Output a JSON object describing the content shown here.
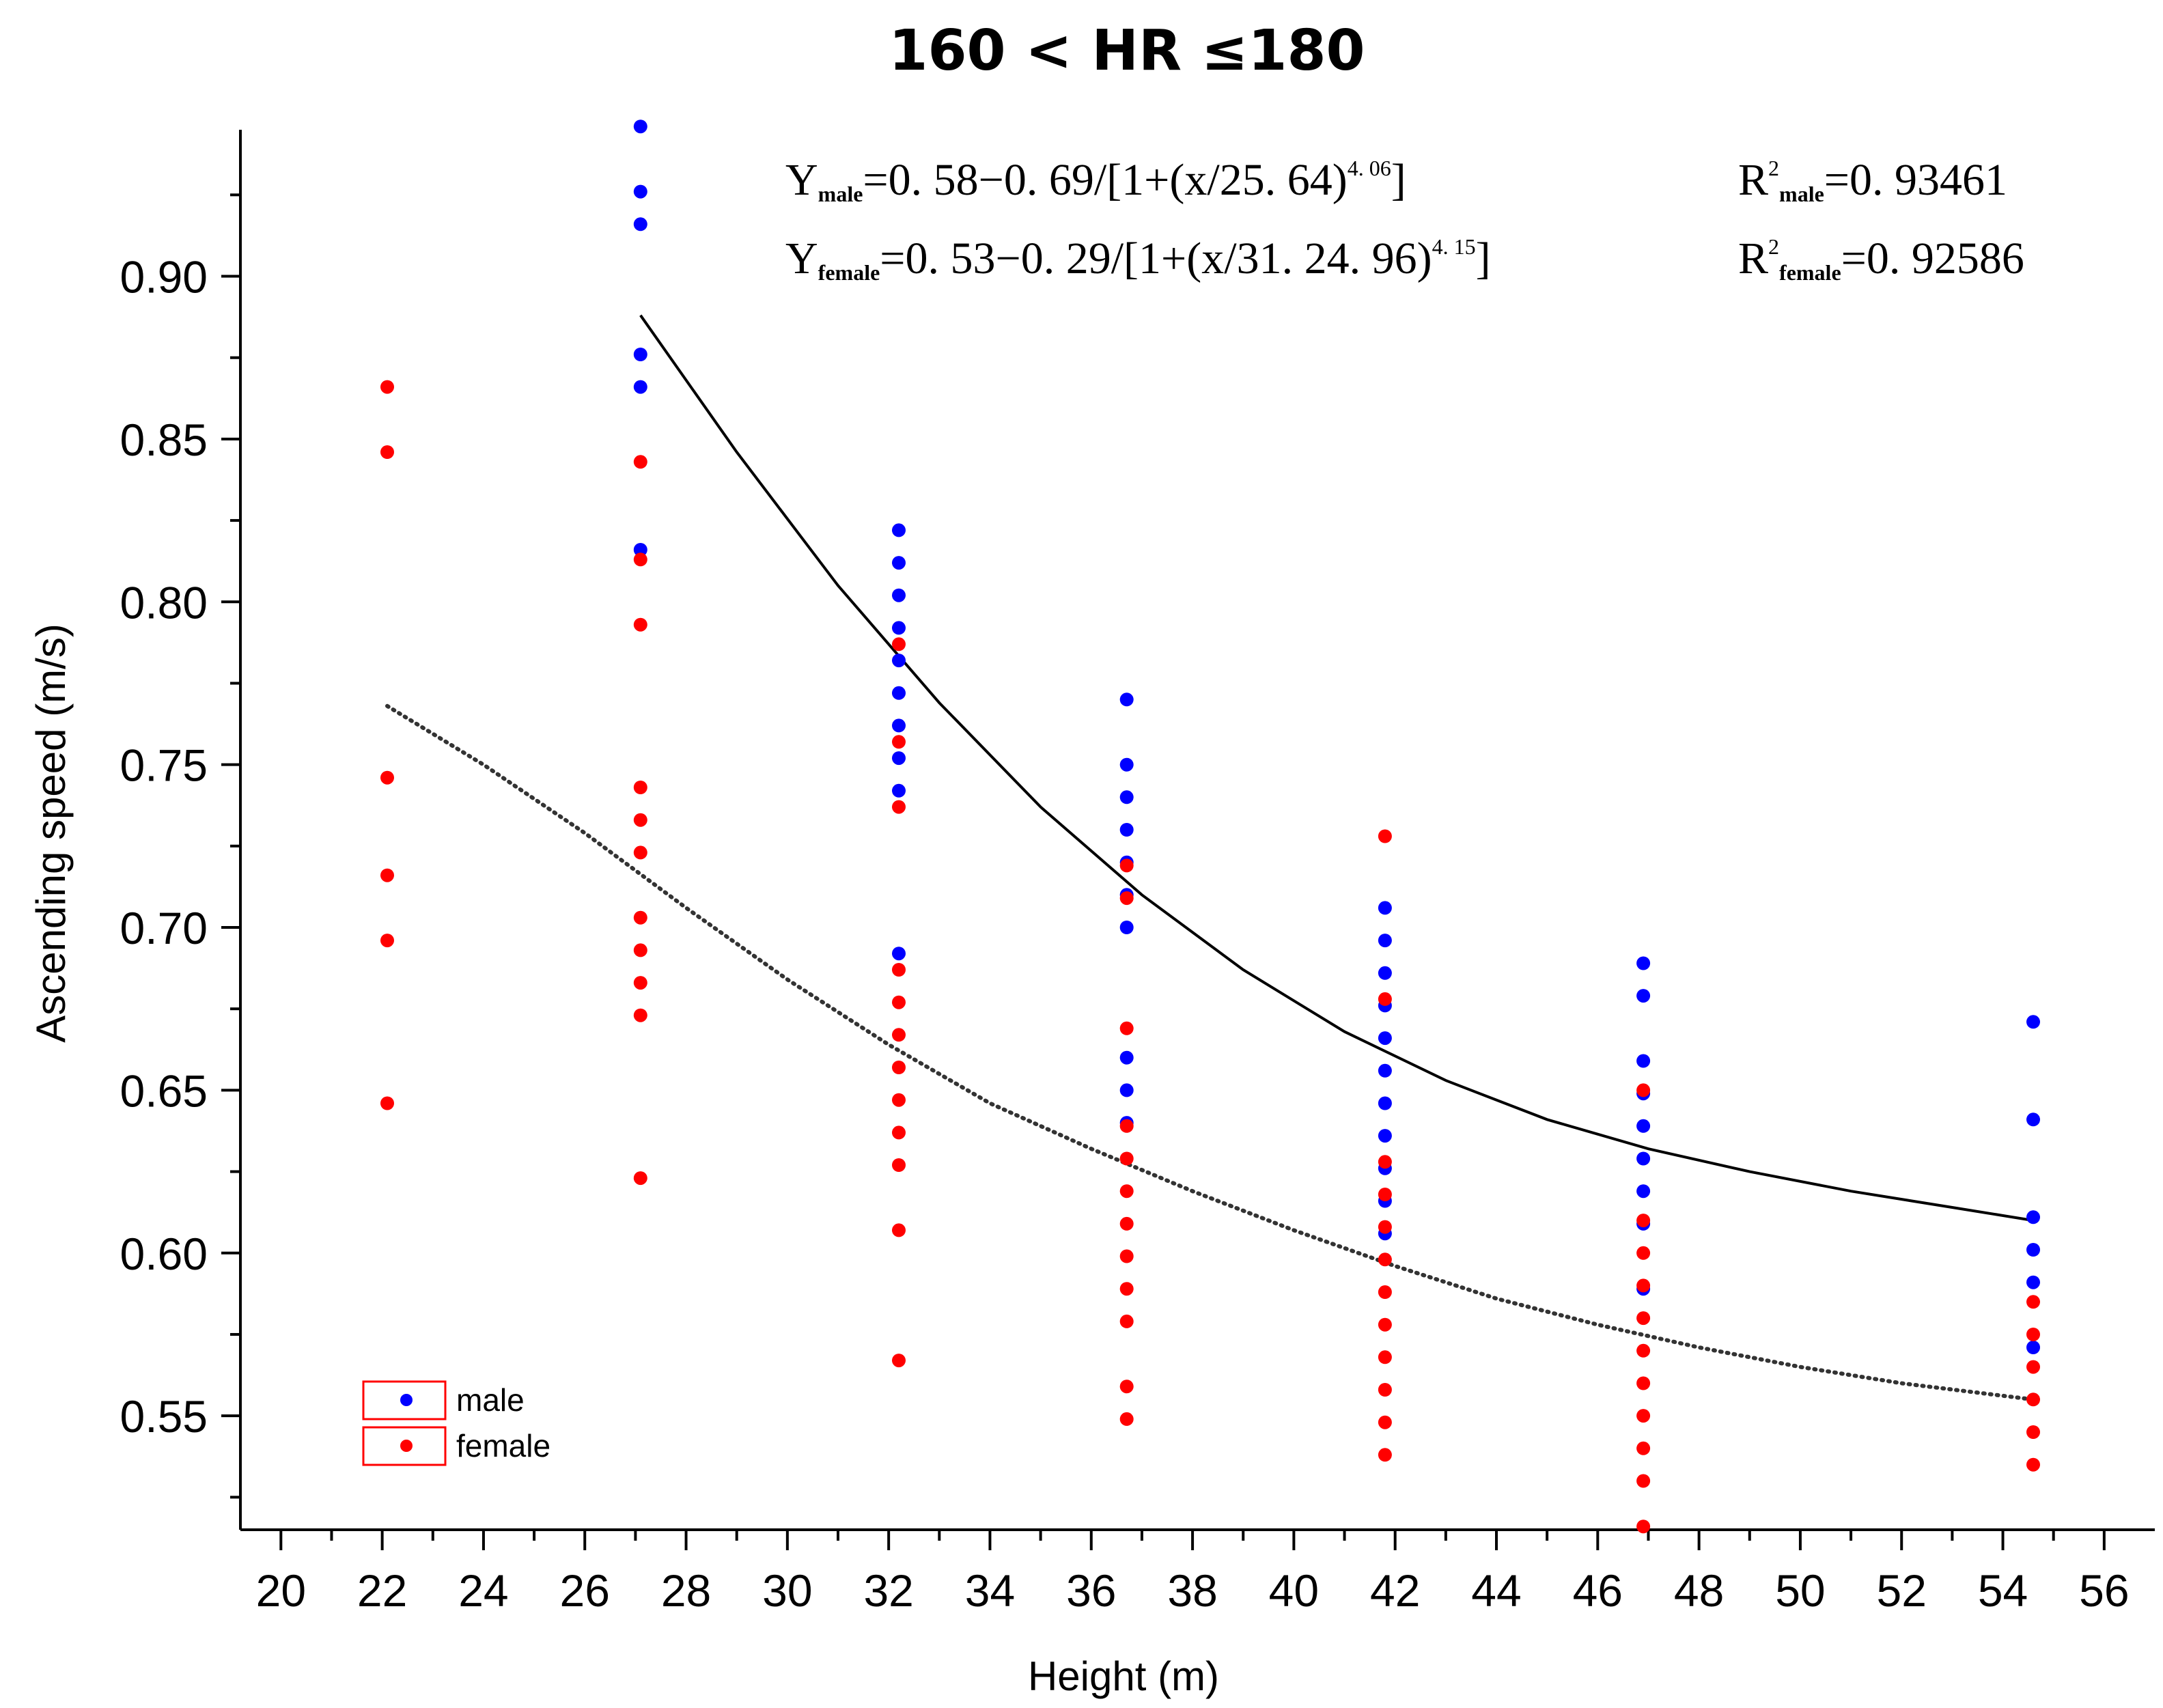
{
  "chart_data": {
    "type": "scatter",
    "title": "160 < HR  ≤180",
    "xlabel": "Height (m)",
    "ylabel": "Ascending speed (m/s)",
    "xlim": [
      19.2,
      57.0
    ],
    "ylim": [
      0.515,
      0.945
    ],
    "x_ticks": [
      20,
      22,
      24,
      26,
      28,
      30,
      32,
      34,
      36,
      38,
      40,
      42,
      44,
      46,
      48,
      50,
      52,
      54,
      56
    ],
    "x_tick_labels": [
      "20",
      "22",
      "24",
      "26",
      "28",
      "30",
      "32",
      "34",
      "36",
      "38",
      "40",
      "42",
      "44",
      "46",
      "48",
      "50",
      "52",
      "54",
      "56"
    ],
    "y_ticks": [
      0.55,
      0.6,
      0.65,
      0.7,
      0.75,
      0.8,
      0.85,
      0.9
    ],
    "y_tick_labels": [
      "0.55",
      "0.60",
      "0.65",
      "0.70",
      "0.75",
      "0.80",
      "0.85",
      "0.90"
    ],
    "series": [
      {
        "name": "male",
        "color": "#0000ff",
        "points": [
          [
            27.1,
            0.946
          ],
          [
            27.1,
            0.926
          ],
          [
            27.1,
            0.916
          ],
          [
            27.1,
            0.876
          ],
          [
            27.1,
            0.866
          ],
          [
            27.1,
            0.816
          ],
          [
            32.2,
            0.822
          ],
          [
            32.2,
            0.812
          ],
          [
            32.2,
            0.802
          ],
          [
            32.2,
            0.792
          ],
          [
            32.2,
            0.782
          ],
          [
            32.2,
            0.772
          ],
          [
            32.2,
            0.762
          ],
          [
            32.2,
            0.752
          ],
          [
            32.2,
            0.742
          ],
          [
            32.2,
            0.692
          ],
          [
            36.7,
            0.77
          ],
          [
            36.7,
            0.75
          ],
          [
            36.7,
            0.74
          ],
          [
            36.7,
            0.73
          ],
          [
            36.7,
            0.72
          ],
          [
            36.7,
            0.71
          ],
          [
            36.7,
            0.7
          ],
          [
            36.7,
            0.66
          ],
          [
            36.7,
            0.65
          ],
          [
            36.7,
            0.64
          ],
          [
            41.8,
            0.706
          ],
          [
            41.8,
            0.696
          ],
          [
            41.8,
            0.686
          ],
          [
            41.8,
            0.676
          ],
          [
            41.8,
            0.666
          ],
          [
            41.8,
            0.656
          ],
          [
            41.8,
            0.646
          ],
          [
            41.8,
            0.636
          ],
          [
            41.8,
            0.626
          ],
          [
            41.8,
            0.616
          ],
          [
            41.8,
            0.606
          ],
          [
            46.9,
            0.689
          ],
          [
            46.9,
            0.679
          ],
          [
            46.9,
            0.659
          ],
          [
            46.9,
            0.649
          ],
          [
            46.9,
            0.639
          ],
          [
            46.9,
            0.629
          ],
          [
            46.9,
            0.619
          ],
          [
            46.9,
            0.609
          ],
          [
            46.9,
            0.589
          ],
          [
            54.6,
            0.671
          ],
          [
            54.6,
            0.641
          ],
          [
            54.6,
            0.611
          ],
          [
            54.6,
            0.601
          ],
          [
            54.6,
            0.591
          ],
          [
            54.6,
            0.571
          ]
        ]
      },
      {
        "name": "female",
        "color": "#ff0000",
        "points": [
          [
            22.1,
            0.866
          ],
          [
            22.1,
            0.846
          ],
          [
            22.1,
            0.746
          ],
          [
            22.1,
            0.716
          ],
          [
            22.1,
            0.696
          ],
          [
            22.1,
            0.646
          ],
          [
            27.1,
            0.843
          ],
          [
            27.1,
            0.813
          ],
          [
            27.1,
            0.793
          ],
          [
            27.1,
            0.743
          ],
          [
            27.1,
            0.733
          ],
          [
            27.1,
            0.723
          ],
          [
            27.1,
            0.703
          ],
          [
            27.1,
            0.693
          ],
          [
            27.1,
            0.683
          ],
          [
            27.1,
            0.673
          ],
          [
            27.1,
            0.623
          ],
          [
            32.2,
            0.787
          ],
          [
            32.2,
            0.757
          ],
          [
            32.2,
            0.737
          ],
          [
            32.2,
            0.687
          ],
          [
            32.2,
            0.677
          ],
          [
            32.2,
            0.667
          ],
          [
            32.2,
            0.657
          ],
          [
            32.2,
            0.647
          ],
          [
            32.2,
            0.637
          ],
          [
            32.2,
            0.627
          ],
          [
            32.2,
            0.607
          ],
          [
            32.2,
            0.567
          ],
          [
            36.7,
            0.719
          ],
          [
            36.7,
            0.709
          ],
          [
            36.7,
            0.669
          ],
          [
            36.7,
            0.639
          ],
          [
            36.7,
            0.629
          ],
          [
            36.7,
            0.619
          ],
          [
            36.7,
            0.609
          ],
          [
            36.7,
            0.599
          ],
          [
            36.7,
            0.589
          ],
          [
            36.7,
            0.579
          ],
          [
            36.7,
            0.559
          ],
          [
            36.7,
            0.549
          ],
          [
            41.8,
            0.728
          ],
          [
            41.8,
            0.678
          ],
          [
            41.8,
            0.628
          ],
          [
            41.8,
            0.618
          ],
          [
            41.8,
            0.608
          ],
          [
            41.8,
            0.598
          ],
          [
            41.8,
            0.588
          ],
          [
            41.8,
            0.578
          ],
          [
            41.8,
            0.568
          ],
          [
            41.8,
            0.558
          ],
          [
            41.8,
            0.548
          ],
          [
            41.8,
            0.538
          ],
          [
            46.9,
            0.65
          ],
          [
            46.9,
            0.61
          ],
          [
            46.9,
            0.6
          ],
          [
            46.9,
            0.59
          ],
          [
            46.9,
            0.58
          ],
          [
            46.9,
            0.57
          ],
          [
            46.9,
            0.56
          ],
          [
            46.9,
            0.55
          ],
          [
            46.9,
            0.54
          ],
          [
            46.9,
            0.53
          ],
          [
            46.9,
            0.516
          ],
          [
            54.6,
            0.585
          ],
          [
            54.6,
            0.575
          ],
          [
            54.6,
            0.565
          ],
          [
            54.6,
            0.555
          ],
          [
            54.6,
            0.545
          ],
          [
            54.6,
            0.535
          ]
        ]
      }
    ],
    "fit_curves": [
      {
        "name": "male fit",
        "style": "solid",
        "color": "#000000",
        "points": [
          [
            27.1,
            0.888
          ],
          [
            29,
            0.846
          ],
          [
            31,
            0.805
          ],
          [
            33,
            0.769
          ],
          [
            35,
            0.737
          ],
          [
            37,
            0.71
          ],
          [
            39,
            0.687
          ],
          [
            41,
            0.668
          ],
          [
            43,
            0.653
          ],
          [
            45,
            0.641
          ],
          [
            47,
            0.632
          ],
          [
            49,
            0.625
          ],
          [
            51,
            0.619
          ],
          [
            53,
            0.614
          ],
          [
            54.6,
            0.61
          ]
        ]
      },
      {
        "name": "female fit",
        "style": "dotted",
        "color": "#333333",
        "points": [
          [
            22.1,
            0.768
          ],
          [
            24,
            0.75
          ],
          [
            26,
            0.729
          ],
          [
            28,
            0.706
          ],
          [
            30,
            0.684
          ],
          [
            32,
            0.664
          ],
          [
            34,
            0.646
          ],
          [
            36,
            0.632
          ],
          [
            38,
            0.619
          ],
          [
            40,
            0.607
          ],
          [
            42,
            0.596
          ],
          [
            44,
            0.586
          ],
          [
            46,
            0.578
          ],
          [
            48,
            0.571
          ],
          [
            50,
            0.565
          ],
          [
            52,
            0.56
          ],
          [
            54.6,
            0.555
          ]
        ]
      }
    ],
    "annotations": {
      "eq_male": {
        "pre": "Y",
        "sub": "male",
        "post": "=0. 58−0. 69/[1+(x/25. 64)",
        "sup": "4. 06",
        "tail": "]"
      },
      "eq_female": {
        "pre": "Y",
        "sub": "female",
        "post": "=0. 53−0. 29/[1+(x/31. 24. 96)",
        "sup": "4. 15",
        "tail": "]"
      },
      "r2_male": {
        "pre": "R",
        "sup": "2",
        "sub": "male",
        "post": "=0. 93461"
      },
      "r2_female": {
        "pre": "R",
        "sup": "2",
        "sub": "female",
        "post": "=0. 92586"
      }
    },
    "legend": {
      "position": "bottom-left",
      "entries": [
        "male",
        "female"
      ]
    }
  }
}
